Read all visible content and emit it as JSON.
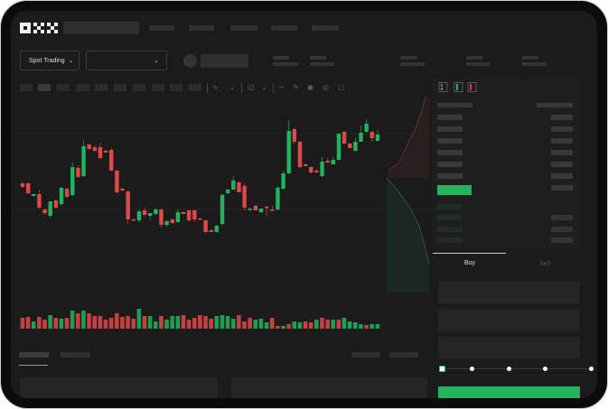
{
  "header": {
    "logo": "OKX",
    "market_selector": "Spot Trading",
    "buy_tab": "Buy",
    "sell_tab": "Sell"
  },
  "icons": {
    "market_selector_chevron": "chevron-down-icon",
    "pair_selector_chevron": "chevron-down-icon",
    "order_book_views": [
      "book-both-icon",
      "book-bids-icon",
      "book-asks-icon"
    ],
    "chart_tools": [
      "indicator-icon",
      "line-icon",
      "draw-icon",
      "camera-icon",
      "settings-icon",
      "fullscreen-icon"
    ]
  },
  "colors": {
    "up": "#22b35e",
    "down": "#e04848",
    "accent": "#22b35e",
    "background": "#1b1b1b"
  },
  "order_form": {
    "leverage_slider_fraction": 0
  },
  "chart_data": {
    "type": "candlestick",
    "candles": [
      [
        97,
        98,
        92,
        93
      ],
      [
        97,
        98,
        85,
        86
      ],
      [
        83,
        85,
        82,
        85
      ],
      [
        85,
        90,
        69,
        70
      ],
      [
        68,
        69,
        62,
        64
      ],
      [
        61,
        77,
        58,
        77
      ],
      [
        78,
        79,
        69,
        70
      ],
      [
        74,
        93,
        72,
        92
      ],
      [
        91,
        92,
        81,
        82
      ],
      [
        84,
        120,
        83,
        115
      ],
      [
        114,
        117,
        103,
        104
      ],
      [
        105,
        145,
        104,
        138
      ],
      [
        140,
        141,
        134,
        135
      ],
      [
        137,
        139,
        132,
        133
      ],
      [
        137,
        142,
        124,
        125
      ],
      [
        133,
        134,
        131,
        131
      ],
      [
        134,
        136,
        110,
        111
      ],
      [
        111,
        112,
        86,
        87
      ],
      [
        91,
        92,
        88,
        89
      ],
      [
        88,
        89,
        52,
        57
      ],
      [
        57,
        58,
        55,
        56
      ],
      [
        56,
        68,
        54,
        66
      ],
      [
        67,
        70,
        60,
        62
      ],
      [
        61,
        64,
        56,
        64
      ],
      [
        63,
        70,
        62,
        68
      ],
      [
        68,
        69,
        48,
        51
      ],
      [
        51,
        56,
        49,
        55
      ],
      [
        57,
        58,
        52,
        53
      ],
      [
        54,
        68,
        53,
        65
      ],
      [
        65,
        66,
        63,
        63
      ],
      [
        67,
        68,
        54,
        56
      ],
      [
        67,
        68,
        54,
        57
      ],
      [
        58,
        59,
        57,
        57
      ],
      [
        56,
        57,
        42,
        43
      ],
      [
        45,
        46,
        43,
        43
      ],
      [
        43,
        51,
        42,
        50
      ],
      [
        52,
        86,
        50,
        84
      ],
      [
        86,
        91,
        85,
        90
      ],
      [
        90,
        105,
        90,
        100
      ],
      [
        98,
        99,
        87,
        87
      ],
      [
        94,
        97,
        67,
        70
      ],
      [
        68,
        70,
        66,
        69
      ],
      [
        72,
        73,
        67,
        67
      ],
      [
        65,
        69,
        64,
        69
      ],
      [
        71,
        72,
        60,
        70
      ],
      [
        68,
        72,
        67,
        67
      ],
      [
        68,
        94,
        67,
        92
      ],
      [
        91,
        111,
        90,
        108
      ],
      [
        108,
        167,
        107,
        155
      ],
      [
        157,
        159,
        140,
        143
      ],
      [
        143,
        144,
        114,
        115
      ],
      [
        118,
        119,
        116,
        116
      ],
      [
        115,
        116,
        108,
        109
      ],
      [
        111,
        113,
        109,
        109
      ],
      [
        105,
        126,
        104,
        121
      ],
      [
        122,
        125,
        120,
        120
      ],
      [
        118,
        127,
        118,
        123
      ],
      [
        123,
        152,
        122,
        152
      ],
      [
        154,
        155,
        140,
        141
      ],
      [
        141,
        142,
        136,
        136
      ],
      [
        133,
        148,
        132,
        143
      ],
      [
        143,
        161,
        143,
        153
      ],
      [
        154,
        168,
        153,
        163
      ],
      [
        154,
        155,
        143,
        147
      ],
      [
        144,
        156,
        143,
        151
      ]
    ],
    "volume": [
      {
        "v": 12,
        "d": "down"
      },
      {
        "v": 13,
        "d": "down"
      },
      {
        "v": 8,
        "d": "up"
      },
      {
        "v": 13,
        "d": "down"
      },
      {
        "v": 10,
        "d": "down"
      },
      {
        "v": 15,
        "d": "up"
      },
      {
        "v": 12,
        "d": "down"
      },
      {
        "v": 11,
        "d": "up"
      },
      {
        "v": 12,
        "d": "down"
      },
      {
        "v": 20,
        "d": "up"
      },
      {
        "v": 17,
        "d": "down"
      },
      {
        "v": 20,
        "d": "up"
      },
      {
        "v": 17,
        "d": "down"
      },
      {
        "v": 14,
        "d": "down"
      },
      {
        "v": 14,
        "d": "down"
      },
      {
        "v": 10,
        "d": "down"
      },
      {
        "v": 12,
        "d": "down"
      },
      {
        "v": 17,
        "d": "down"
      },
      {
        "v": 13,
        "d": "down"
      },
      {
        "v": 14,
        "d": "down"
      },
      {
        "v": 11,
        "d": "down"
      },
      {
        "v": 22,
        "d": "up"
      },
      {
        "v": 14,
        "d": "down"
      },
      {
        "v": 14,
        "d": "up"
      },
      {
        "v": 8,
        "d": "up"
      },
      {
        "v": 14,
        "d": "down"
      },
      {
        "v": 10,
        "d": "up"
      },
      {
        "v": 14,
        "d": "up"
      },
      {
        "v": 14,
        "d": "up"
      },
      {
        "v": 15,
        "d": "down"
      },
      {
        "v": 10,
        "d": "down"
      },
      {
        "v": 12,
        "d": "down"
      },
      {
        "v": 15,
        "d": "down"
      },
      {
        "v": 14,
        "d": "down"
      },
      {
        "v": 11,
        "d": "down"
      },
      {
        "v": 14,
        "d": "up"
      },
      {
        "v": 15,
        "d": "up"
      },
      {
        "v": 14,
        "d": "up"
      },
      {
        "v": 11,
        "d": "up"
      },
      {
        "v": 15,
        "d": "down"
      },
      {
        "v": 8,
        "d": "down"
      },
      {
        "v": 12,
        "d": "down"
      },
      {
        "v": 10,
        "d": "up"
      },
      {
        "v": 11,
        "d": "up"
      },
      {
        "v": 7,
        "d": "up"
      },
      {
        "v": 12,
        "d": "down"
      },
      {
        "v": 3,
        "d": "down"
      },
      {
        "v": 3,
        "d": "up"
      },
      {
        "v": 5,
        "d": "down"
      },
      {
        "v": 8,
        "d": "up"
      },
      {
        "v": 7,
        "d": "up"
      },
      {
        "v": 8,
        "d": "down"
      },
      {
        "v": 7,
        "d": "down"
      },
      {
        "v": 10,
        "d": "up"
      },
      {
        "v": 12,
        "d": "down"
      },
      {
        "v": 10,
        "d": "down"
      },
      {
        "v": 10,
        "d": "up"
      },
      {
        "v": 10,
        "d": "down"
      },
      {
        "v": 12,
        "d": "up"
      },
      {
        "v": 8,
        "d": "up"
      },
      {
        "v": 7,
        "d": "up"
      },
      {
        "v": 5,
        "d": "up"
      },
      {
        "v": 4,
        "d": "down"
      },
      {
        "v": 5,
        "d": "up"
      },
      {
        "v": 5,
        "d": "up"
      }
    ]
  }
}
